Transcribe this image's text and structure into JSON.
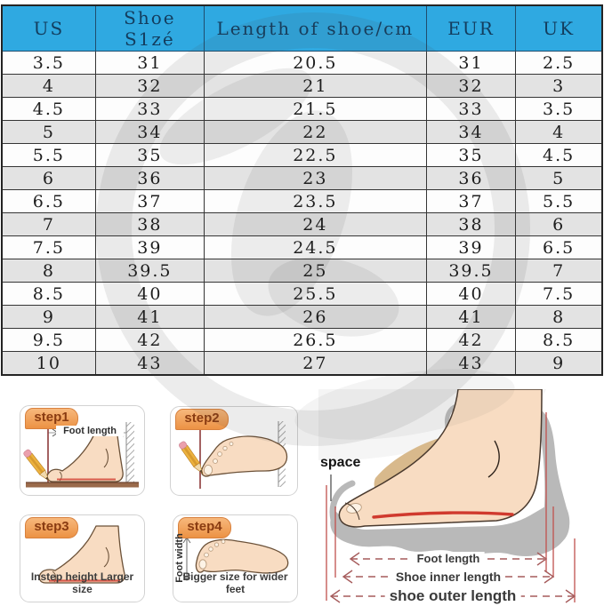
{
  "table": {
    "headers": [
      "US",
      "Shoe S1zé",
      "Length of shoe/cm",
      "EUR",
      "UK"
    ],
    "rows": [
      [
        "3.5",
        "31",
        "20.5",
        "31",
        "2.5"
      ],
      [
        "4",
        "32",
        "21",
        "32",
        "3"
      ],
      [
        "4.5",
        "33",
        "21.5",
        "33",
        "3.5"
      ],
      [
        "5",
        "34",
        "22",
        "34",
        "4"
      ],
      [
        "5.5",
        "35",
        "22.5",
        "35",
        "4.5"
      ],
      [
        "6",
        "36",
        "23",
        "36",
        "5"
      ],
      [
        "6.5",
        "37",
        "23.5",
        "37",
        "5.5"
      ],
      [
        "7",
        "38",
        "24",
        "38",
        "6"
      ],
      [
        "7.5",
        "39",
        "24.5",
        "39",
        "6.5"
      ],
      [
        "8",
        "39.5",
        "25",
        "39.5",
        "7"
      ],
      [
        "8.5",
        "40",
        "25.5",
        "40",
        "7.5"
      ],
      [
        "9",
        "41",
        "26",
        "41",
        "8"
      ],
      [
        "9.5",
        "42",
        "26.5",
        "42",
        "8.5"
      ],
      [
        "10",
        "43",
        "27",
        "43",
        "9"
      ]
    ]
  },
  "steps": {
    "step1": {
      "badge": "step1",
      "measure_label": "Foot length"
    },
    "step2": {
      "badge": "step2"
    },
    "step3": {
      "badge": "step3",
      "caption": "Instep height Larger size"
    },
    "step4": {
      "badge": "step4",
      "side_label": "Foot width",
      "caption": "Bigger size for wider feet"
    }
  },
  "diagram": {
    "space_label": "space",
    "measurements": {
      "foot_length": "Foot length",
      "shoe_inner_length": "Shoe inner length",
      "shoe_outer_length": "shoe outer length"
    }
  },
  "colors": {
    "header_bg": "#2fa9e1",
    "header_text": "#133d5e",
    "row_alt_bg": "#e3e3e3",
    "table_border": "#353535",
    "step_badge_bg": "#ec9244",
    "step_badge_text": "#8a3c12",
    "skin": "#f8dcc2",
    "shoe_gray": "#b9b9b9",
    "shoe_upper_tan": "#d8b98c",
    "insole_red": "#d03a2e",
    "measure_line": "#a65c5c",
    "floor_brown": "#9a6a4b"
  }
}
